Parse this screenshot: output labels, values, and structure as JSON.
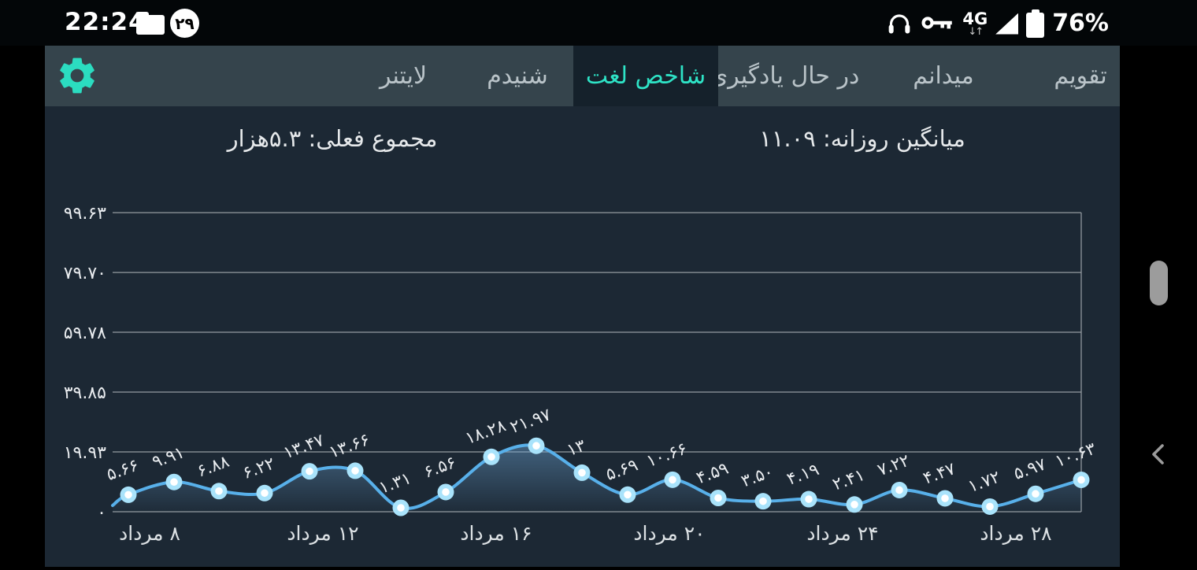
{
  "status_bar": {
    "time": "22:24",
    "notification_badge_count": "۲۹",
    "network_type": "4G",
    "network_arrows": "↓↑",
    "battery_percent": "76%"
  },
  "tab_bar": {
    "active_tab": "شاخص لغت",
    "active_color": "#2ee3c6",
    "inactive_color": "#b9c3c8",
    "tabs": [
      {
        "label": "تقویم"
      },
      {
        "label": "میدانم"
      },
      {
        "label": "در حال یادگیری"
      },
      {
        "label": "شاخص لغت"
      },
      {
        "label": "شنیدم"
      },
      {
        "label": "لایتنر"
      }
    ]
  },
  "header": {
    "daily_average": "میانگین روزانه: ۱۱.۰۹",
    "current_total": "مجموع فعلی: ۵.۳هزار"
  },
  "chart_data": {
    "type": "area",
    "title": "شاخص لغت",
    "xlabel": "",
    "ylabel": "",
    "ylim": [
      0,
      105
    ],
    "grid": true,
    "line_color": "#58b0ea",
    "point_ring_color": "#a9e3fb",
    "point_core_color": "#ffffff",
    "grid_color": "#9aa0a5",
    "label_color": "#e9ecef",
    "x_tick_labels": [
      "۸ مرداد",
      "۱۲ مرداد",
      "۱۶ مرداد",
      "۲۰ مرداد",
      "۲۴ مرداد",
      "۲۸ مرداد"
    ],
    "y_ticks": [
      {
        "value": 0,
        "label": "۰"
      },
      {
        "value": 19.93,
        "label": "۱۹.۹۳"
      },
      {
        "value": 39.85,
        "label": "۳۹.۸۵"
      },
      {
        "value": 59.78,
        "label": "۵۹.۷۸"
      },
      {
        "value": 79.7,
        "label": "۷۹.۷۰"
      },
      {
        "value": 99.63,
        "label": "۹۹.۶۳"
      }
    ],
    "points": [
      {
        "value": 5.66,
        "label": "۵.۶۶"
      },
      {
        "value": 9.91,
        "label": "۹.۹۱"
      },
      {
        "value": 6.88,
        "label": "۶.۸۸"
      },
      {
        "value": 6.22,
        "label": "۶.۲۲"
      },
      {
        "value": 13.47,
        "label": "۱۳.۴۷"
      },
      {
        "value": 13.66,
        "label": "۱۳.۶۶"
      },
      {
        "value": 1.31,
        "label": "۱.۳۱"
      },
      {
        "value": 6.56,
        "label": "۶.۵۶"
      },
      {
        "value": 18.28,
        "label": "۱۸.۲۸"
      },
      {
        "value": 21.97,
        "label": "۲۱.۹۷"
      },
      {
        "value": 13,
        "label": "۱۳"
      },
      {
        "value": 5.69,
        "label": "۵.۶۹"
      },
      {
        "value": 10.66,
        "label": "۱۰.۶۶"
      },
      {
        "value": 4.59,
        "label": "۴.۵۹"
      },
      {
        "value": 3.5,
        "label": "۳.۵۰"
      },
      {
        "value": 4.19,
        "label": "۴.۱۹"
      },
      {
        "value": 2.41,
        "label": "۲.۴۱"
      },
      {
        "value": 7.22,
        "label": "۷.۲۲"
      },
      {
        "value": 4.47,
        "label": "۴.۴۷"
      },
      {
        "value": 1.72,
        "label": "۱.۷۲"
      },
      {
        "value": 5.97,
        "label": "۵.۹۷"
      },
      {
        "value": 10.63,
        "label": "۱۰.۶۳"
      }
    ]
  }
}
